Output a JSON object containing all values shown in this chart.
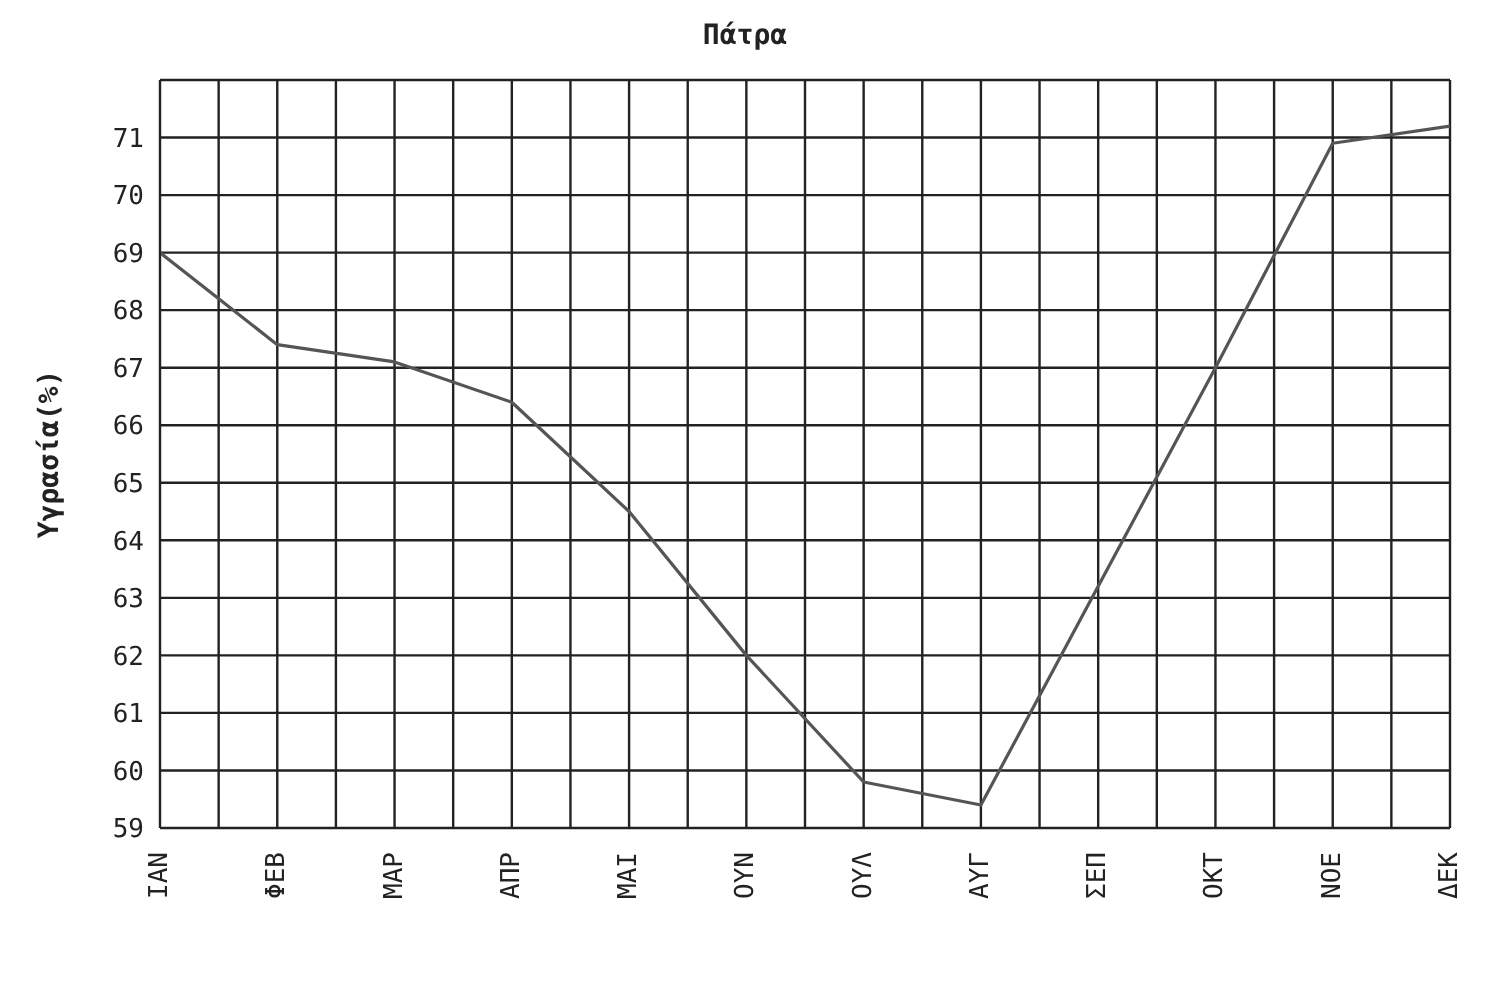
{
  "chart_data": {
    "type": "line",
    "title": "Πάτρα",
    "ylabel": "Υγρασία(%)",
    "categories": [
      "ΙΑΝ",
      "ΦΕΒ",
      "ΜΑΡ",
      "ΑΠΡ",
      "ΜΑΙ",
      "ΟΥΝ",
      "ΟΥΛ",
      "ΑΥΓ",
      "ΣΕΠ",
      "ΟΚΤ",
      "ΝΟΕ",
      "ΔΕΚ"
    ],
    "series": [
      {
        "color": "#555555",
        "values": [
          69,
          67.4,
          67.1,
          66.4,
          64.5,
          62,
          59.8,
          59.4,
          63.2,
          67,
          70.9,
          71.2
        ]
      }
    ],
    "ylim": [
      59,
      72
    ],
    "yticks": [
      59,
      60,
      61,
      62,
      63,
      64,
      65,
      66,
      67,
      68,
      69,
      70,
      71
    ],
    "grid": true,
    "legend": false,
    "marker": "none",
    "line_style": "solid"
  }
}
